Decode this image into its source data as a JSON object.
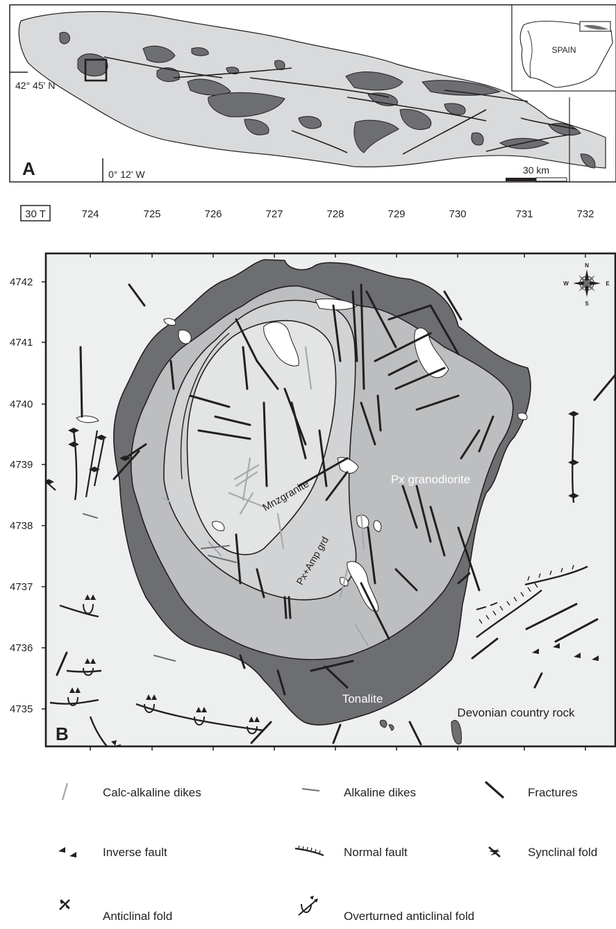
{
  "panel_a": {
    "panel_letter": "A",
    "latitude_label": "42° 45' N",
    "longitude_label": "0° 12' W",
    "scale_label": "30 km",
    "inset_country_label": "SPAIN"
  },
  "panel_b": {
    "panel_letter": "B",
    "utm_zone_label": "30 T",
    "easting_ticks": [
      "724",
      "725",
      "726",
      "727",
      "728",
      "729",
      "730",
      "731",
      "732"
    ],
    "northing_ticks": [
      "4742",
      "4741",
      "4740",
      "4739",
      "4738",
      "4737",
      "4736",
      "4735"
    ],
    "units": {
      "monzogranite": "Mnzgranite",
      "px_amp_granodiorite": "Px+Amp grd",
      "px_granodiorite": "Px granodiorite",
      "tonalite": "Tonalite",
      "country_rock": "Devonian country rock"
    },
    "compass": {
      "north": "N",
      "south": "S",
      "east": "E",
      "west": "W"
    }
  },
  "legend": [
    {
      "id": "calc-alkaline-dikes",
      "label": "Calc-alkaline dikes"
    },
    {
      "id": "alkaline-dikes",
      "label": "Alkaline dikes"
    },
    {
      "id": "fractures",
      "label": "Fractures"
    },
    {
      "id": "inverse-fault",
      "label": "Inverse fault"
    },
    {
      "id": "normal-fault",
      "label": "Normal fault"
    },
    {
      "id": "synclinal-fold",
      "label": "Synclinal fold"
    },
    {
      "id": "anticlinal-fold",
      "label": "Anticlinal fold"
    },
    {
      "id": "overturned-anticlinal-fold",
      "label": "Overturned anticlinal fold"
    }
  ],
  "colors": {
    "country_rock": "#eef0ef",
    "mnzgranite": "#e3e5e4",
    "px_amp_grd": "#d1d3d4",
    "px_granodiorite": "#bcbec0",
    "tonalite_and_outcrops": "#6d6e71",
    "batholith_light": "#d9dadb",
    "outline": "#231f20",
    "calc_alkaline_dike": "#a7a9ac",
    "alkaline_dike": "#6d6e71"
  }
}
